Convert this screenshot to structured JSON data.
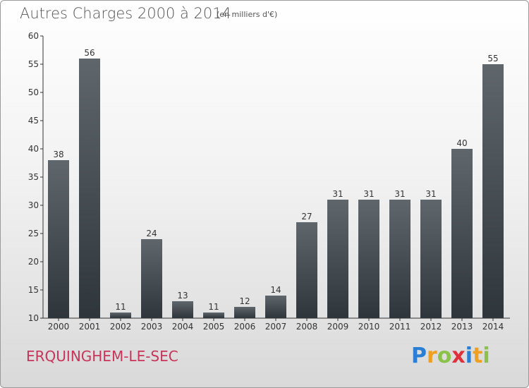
{
  "header": {
    "title": "Autres Charges 2000 à 2014",
    "subtitle": "(en milliers d'€)"
  },
  "footer": {
    "commune": "ERQUINGHEM-LE-SEC",
    "brand": "Proxiti"
  },
  "colors": {
    "bar_top": "#5f666c",
    "bar_bottom": "#2e353b",
    "commune": "#c8345a",
    "axis": "#333333"
  },
  "chart_data": {
    "type": "bar",
    "title": "Autres Charges 2000 à 2014",
    "subtitle": "(en milliers d'€)",
    "categories": [
      "2000",
      "2001",
      "2002",
      "2003",
      "2004",
      "2005",
      "2006",
      "2007",
      "2008",
      "2009",
      "2010",
      "2011",
      "2012",
      "2013",
      "2014"
    ],
    "values": [
      38,
      56,
      11,
      24,
      13,
      11,
      12,
      14,
      27,
      31,
      31,
      31,
      31,
      40,
      55
    ],
    "ylim": [
      10,
      60
    ],
    "yticks": [
      10,
      15,
      20,
      25,
      30,
      35,
      40,
      45,
      50,
      55,
      60
    ],
    "grid": false,
    "data_labels": true
  }
}
